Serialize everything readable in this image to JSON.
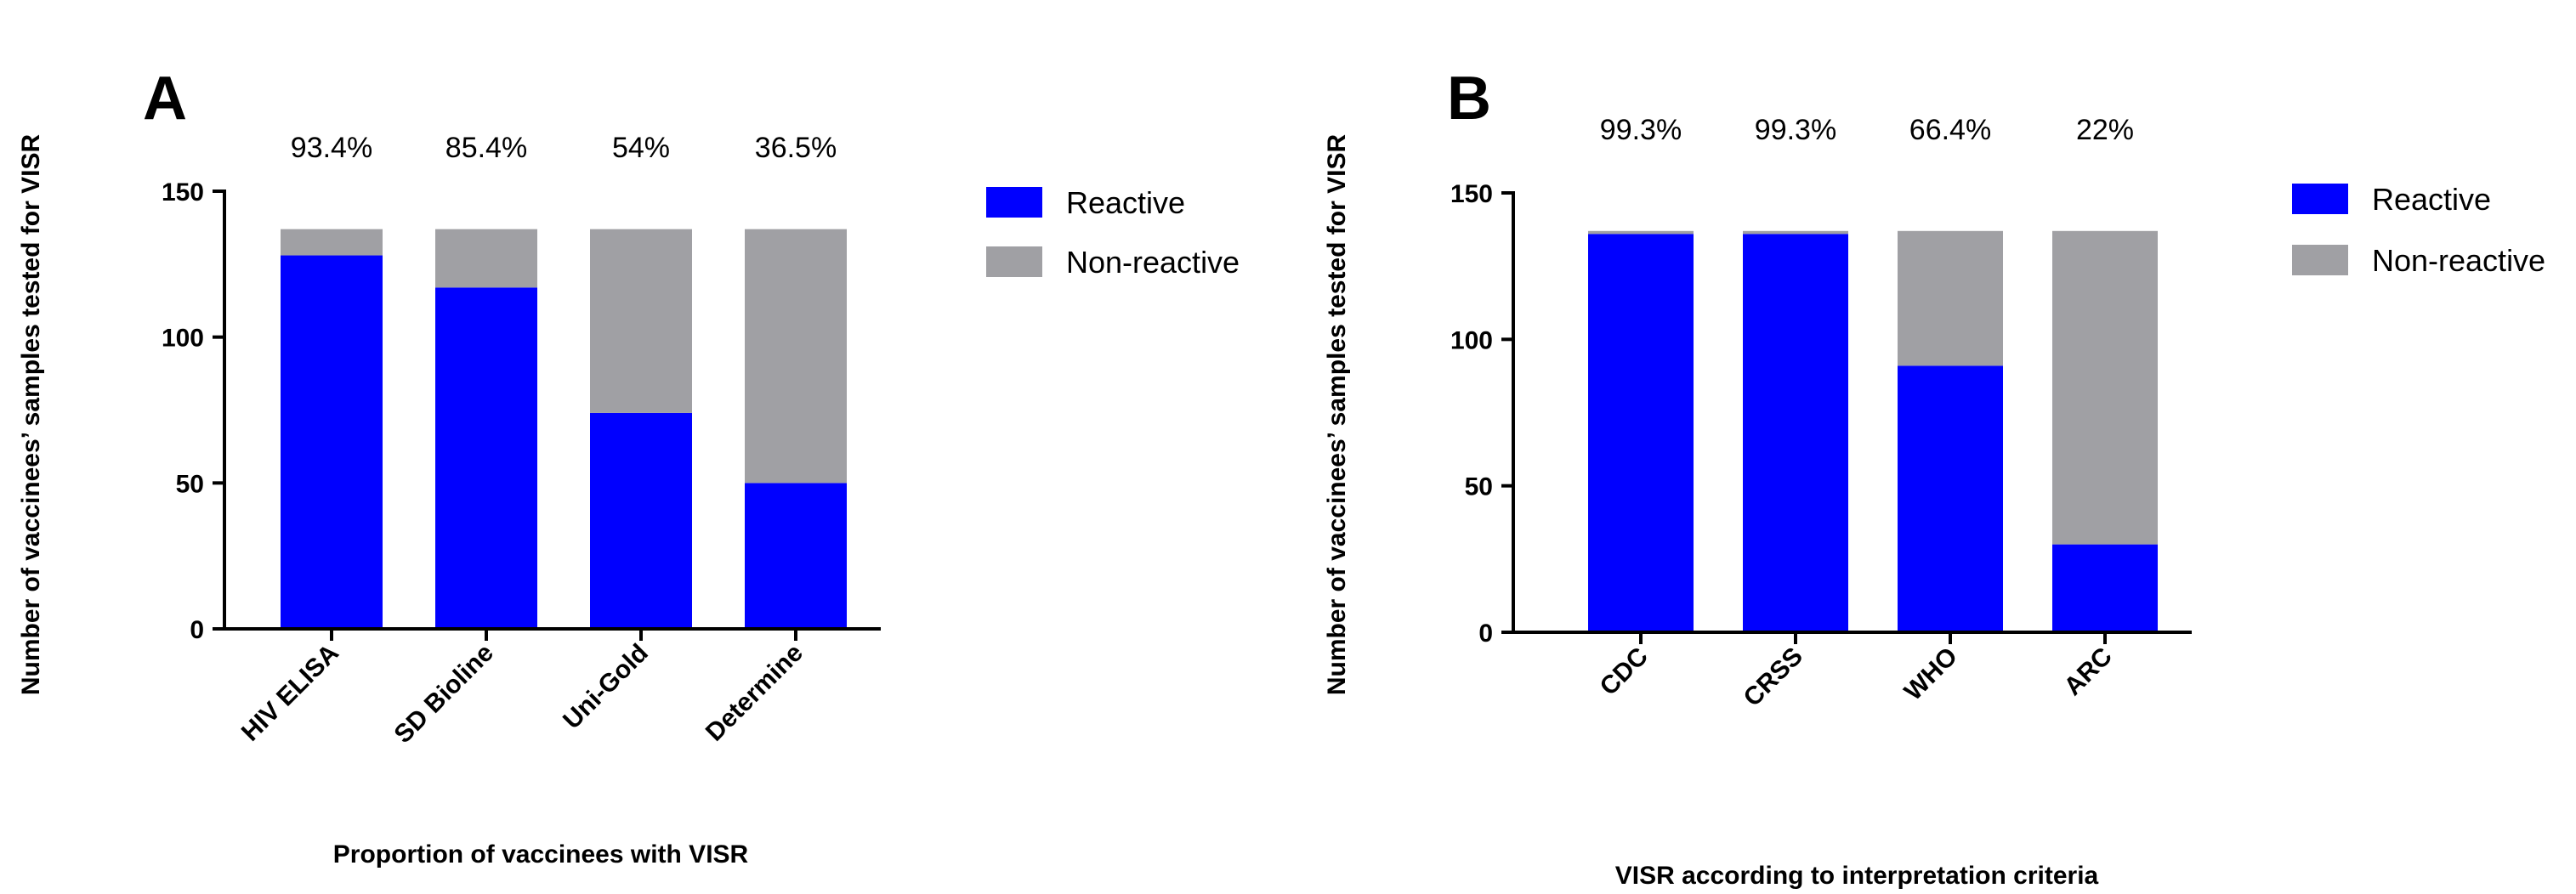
{
  "colors": {
    "reactive": "#0000ff",
    "nonreactive": "#a0a0a4",
    "axis": "#000000"
  },
  "chart_data": [
    {
      "type": "bar",
      "stacked": true,
      "panel": "A",
      "categories": [
        "HIV ELISA",
        "SD Bioline",
        "Uni-Gold",
        "Determine"
      ],
      "percent_labels": [
        "93.4%",
        "85.4%",
        "54%",
        "36.5%"
      ],
      "series": [
        {
          "name": "Reactive",
          "values": [
            128,
            117,
            74,
            50
          ]
        },
        {
          "name": "Non-reactive",
          "values": [
            9,
            20,
            63,
            87
          ]
        }
      ],
      "ylabel": "Number of vaccinees’ samples tested for VISR",
      "xlabel": "Proportion of vaccinees with VISR",
      "ylim": [
        0,
        150
      ],
      "yticks": [
        0,
        50,
        100,
        150
      ],
      "grid": false,
      "legend": "right"
    },
    {
      "type": "bar",
      "stacked": true,
      "panel": "B",
      "categories": [
        "CDC",
        "CRSS",
        "WHO",
        "ARC"
      ],
      "percent_labels": [
        "99.3%",
        "99.3%",
        "66.4%",
        "22%"
      ],
      "series": [
        {
          "name": "Reactive",
          "values": [
            136,
            136,
            91,
            30
          ]
        },
        {
          "name": "Non-reactive",
          "values": [
            1,
            1,
            46,
            107
          ]
        }
      ],
      "ylabel": "Number of vaccinees’ samples tested for VISR",
      "xlabel": "VISR according to interpretation criteria",
      "ylim": [
        0,
        150
      ],
      "yticks": [
        0,
        50,
        100,
        150
      ],
      "grid": false,
      "legend": "right"
    }
  ]
}
